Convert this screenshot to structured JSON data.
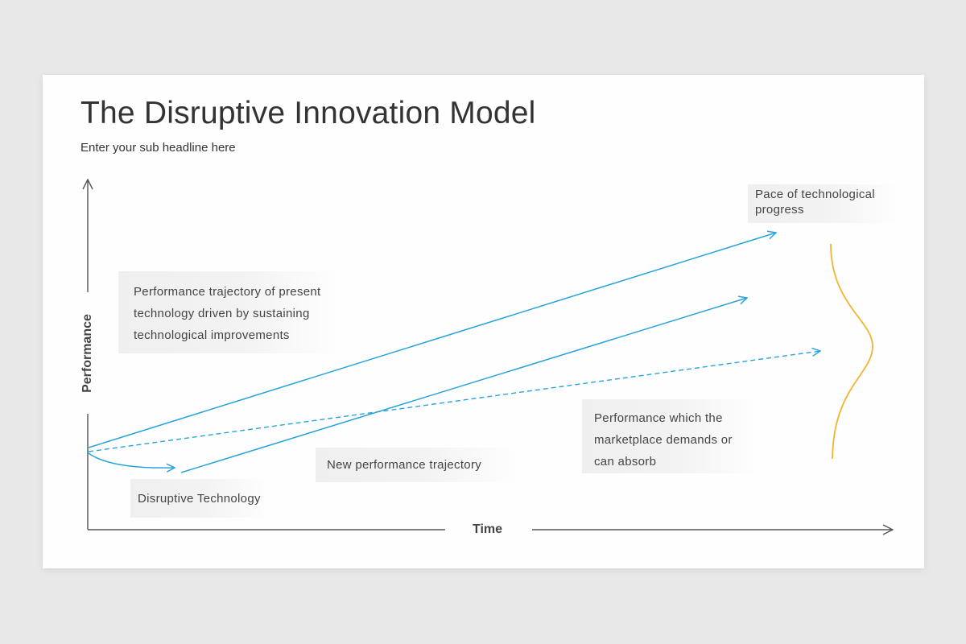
{
  "slide": {
    "title": "The Disruptive Innovation Model",
    "subtitle": "Enter your sub headline here"
  },
  "axes": {
    "x_label": "Time",
    "y_label": "Performance"
  },
  "labels": {
    "sustaining": [
      "Performance trajectory of present",
      "technology driven by sustaining",
      "technological improvements"
    ],
    "new_trajectory": "New performance trajectory",
    "disruptive": "Disruptive Technology",
    "market": [
      "Performance which the",
      "marketplace demands or",
      "can absorb"
    ],
    "pace": [
      "Pace of technological",
      "progress"
    ]
  },
  "colors": {
    "trajectory": "#29a3dc",
    "range_curve": "#f2b431",
    "axis": "#555555",
    "text": "#444444"
  }
}
